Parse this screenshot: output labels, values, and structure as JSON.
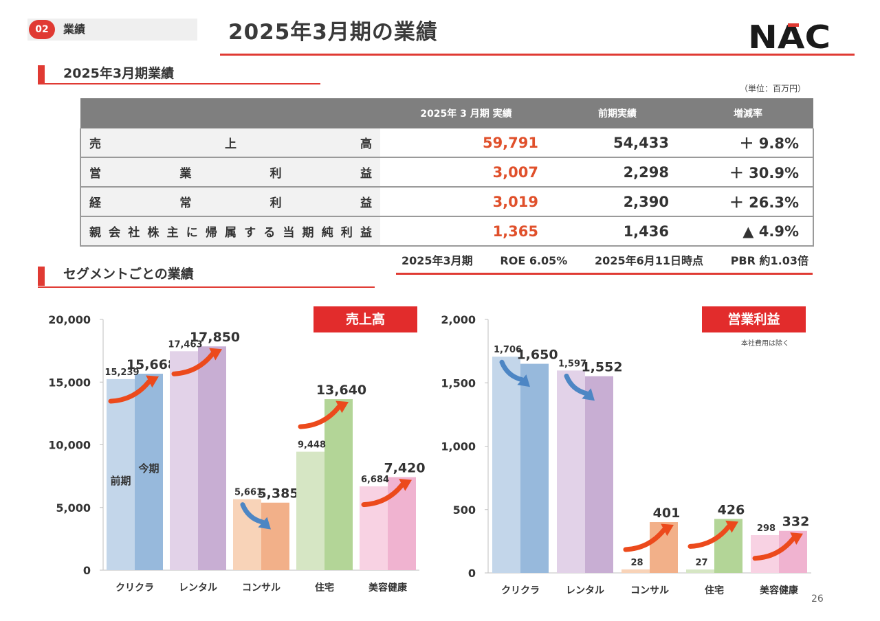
{
  "header": {
    "section_number": "02",
    "section_label": "業績",
    "title": "2025年3月期の業績",
    "logo_text": "NAC"
  },
  "table_section": {
    "heading": "2025年3月期業績",
    "unit": "（単位：百万円）",
    "columns": [
      "",
      "2025年 3 月期 実績",
      "前期実績",
      "増減率"
    ],
    "rows": [
      {
        "label": [
          "売",
          "上",
          "高"
        ],
        "current": "59,791",
        "previous": "54,433",
        "change": "＋ 9.8%"
      },
      {
        "label": [
          "営",
          "業",
          "利",
          "益"
        ],
        "current": "3,007",
        "previous": "2,298",
        "change": "＋ 30.9%"
      },
      {
        "label": [
          "経",
          "常",
          "利",
          "益"
        ],
        "current": "3,019",
        "previous": "2,390",
        "change": "＋ 26.3%"
      },
      {
        "label": [
          "親",
          "会",
          "社",
          "株",
          "主",
          "に",
          "帰",
          "属",
          "す",
          "る",
          "当",
          "期",
          "純",
          "利",
          "益"
        ],
        "current": "1,365",
        "previous": "1,436",
        "change": "▲ 4.9%"
      }
    ],
    "roe_items": [
      "2025年3月期",
      "ROE 6.05%",
      "2025年6月11日時点",
      "PBR 約1.03倍"
    ]
  },
  "segment_section": {
    "heading": "セグメントごとの業績"
  },
  "colors": {
    "accent_red": "#e03a33",
    "current_value": "#e0502b",
    "arrow_up": "#ec4a1c",
    "arrow_down": "#4d86c4"
  },
  "chart_data": [
    {
      "type": "bar",
      "title": "売上高",
      "categories": [
        "クリクラ",
        "レンタル",
        "コンサル",
        "住宅",
        "美容健康"
      ],
      "series": [
        {
          "name": "前期",
          "values": [
            15239,
            17463,
            5661,
            9448,
            6684
          ],
          "labels": [
            "15,239",
            "17,463",
            "5,661",
            "9,448",
            "6,684"
          ]
        },
        {
          "name": "今期",
          "values": [
            15668,
            17850,
            5385,
            13640,
            7420
          ],
          "labels": [
            "15,668",
            "17,850",
            "5,385",
            "13,640",
            "7,420"
          ]
        }
      ],
      "ylim": [
        0,
        20000
      ],
      "yticks": [
        0,
        5000,
        10000,
        15000,
        20000
      ],
      "ytick_labels": [
        "0",
        "5,000",
        "10,000",
        "15,000",
        "20,000"
      ],
      "trend": [
        "up",
        "up",
        "down",
        "up",
        "up"
      ],
      "bar_colors": {
        "prev": [
          "#c3d6ea",
          "#e2d2e8",
          "#f8d3b8",
          "#d6e6c4",
          "#f8d2e3"
        ],
        "curr": [
          "#97b9dc",
          "#c8aed3",
          "#f2b089",
          "#b3d597",
          "#f0b3d0"
        ]
      }
    },
    {
      "type": "bar",
      "title": "営業利益",
      "note": "本社費用は除く",
      "categories": [
        "クリクラ",
        "レンタル",
        "コンサル",
        "住宅",
        "美容健康"
      ],
      "series": [
        {
          "name": "前期",
          "values": [
            1706,
            1597,
            28,
            27,
            298
          ],
          "labels": [
            "1,706",
            "1,597",
            "28",
            "27",
            "298"
          ]
        },
        {
          "name": "今期",
          "values": [
            1650,
            1552,
            401,
            426,
            332
          ],
          "labels": [
            "1,650",
            "1,552",
            "401",
            "426",
            "332"
          ]
        }
      ],
      "ylim": [
        0,
        2000
      ],
      "yticks": [
        0,
        500,
        1000,
        1500,
        2000
      ],
      "ytick_labels": [
        "0",
        "500",
        "1,000",
        "1,500",
        "2,000"
      ],
      "trend": [
        "down",
        "down",
        "up",
        "up",
        "up"
      ],
      "bar_colors": {
        "prev": [
          "#c3d6ea",
          "#e2d2e8",
          "#f8d3b8",
          "#d6e6c4",
          "#f8d2e3"
        ],
        "curr": [
          "#97b9dc",
          "#c8aed3",
          "#f2b089",
          "#b3d597",
          "#f0b3d0"
        ]
      }
    }
  ],
  "page_number": "26"
}
